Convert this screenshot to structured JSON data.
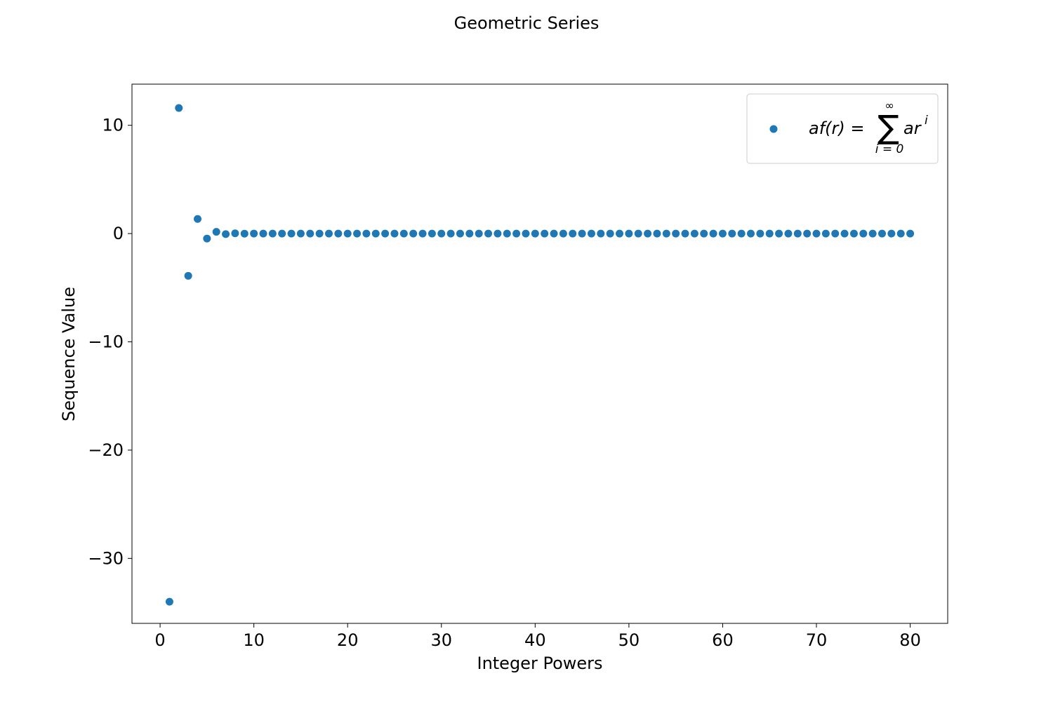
{
  "chart_data": {
    "type": "scatter",
    "title": "Geometric Series",
    "xlabel": "Integer Powers",
    "ylabel": "Sequence Value",
    "xlim": [
      -3,
      84
    ],
    "ylim": [
      -36,
      13.8
    ],
    "xticks": [
      0,
      10,
      20,
      30,
      40,
      50,
      60,
      70,
      80
    ],
    "yticks": [
      10,
      0,
      -10,
      -20,
      -30
    ],
    "ytick_labels": [
      "10",
      "0",
      "−10",
      "−20",
      "−30"
    ],
    "grid": false,
    "legend_position": "top-right",
    "color": "#1f77b4",
    "series": [
      {
        "name": "af(r) = ∑ ar^i, i = 0 to ∞",
        "legend_parts": {
          "lhs": "af(r) =",
          "sigma": "∑",
          "upper": "∞",
          "lower": "i = 0",
          "term": "ar",
          "exp": "i"
        },
        "x": [
          1,
          2,
          3,
          4,
          5,
          6,
          7,
          8,
          9,
          10,
          11,
          12,
          13,
          14,
          15,
          16,
          17,
          18,
          19,
          20,
          21,
          22,
          23,
          24,
          25,
          26,
          27,
          28,
          29,
          30,
          31,
          32,
          33,
          34,
          35,
          36,
          37,
          38,
          39,
          40,
          41,
          42,
          43,
          44,
          45,
          46,
          47,
          48,
          49,
          50,
          51,
          52,
          53,
          54,
          55,
          56,
          57,
          58,
          59,
          60,
          61,
          62,
          63,
          64,
          65,
          66,
          67,
          68,
          69,
          70,
          71,
          72,
          73,
          74,
          75,
          76,
          77,
          78,
          79,
          80
        ],
        "y": [
          -34,
          11.6,
          -3.9,
          1.35,
          -0.46,
          0.16,
          -0.05,
          0.02,
          -0.006,
          0.002,
          0,
          0,
          0,
          0,
          0,
          0,
          0,
          0,
          0,
          0,
          0,
          0,
          0,
          0,
          0,
          0,
          0,
          0,
          0,
          0,
          0,
          0,
          0,
          0,
          0,
          0,
          0,
          0,
          0,
          0,
          0,
          0,
          0,
          0,
          0,
          0,
          0,
          0,
          0,
          0,
          0,
          0,
          0,
          0,
          0,
          0,
          0,
          0,
          0,
          0,
          0,
          0,
          0,
          0,
          0,
          0,
          0,
          0,
          0,
          0,
          0,
          0,
          0,
          0,
          0,
          0,
          0,
          0,
          0,
          0
        ]
      }
    ]
  }
}
